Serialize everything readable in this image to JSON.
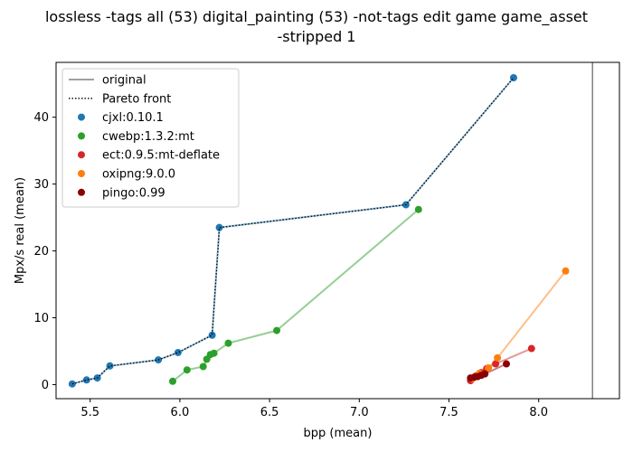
{
  "chart_data": {
    "type": "scatter",
    "title_lines": [
      "lossless -tags all (53) digital_painting (53) -not-tags edit game game_asset",
      "-stripped 1"
    ],
    "xlabel": "bpp (mean)",
    "ylabel": "Mpx/s real (mean)",
    "xlim": [
      5.31,
      8.45
    ],
    "ylim": [
      -2.1,
      48.2
    ],
    "xticks": [
      "5.5",
      "6.0",
      "6.5",
      "7.0",
      "7.5",
      "8.0"
    ],
    "yticks": [
      "0",
      "10",
      "20",
      "30",
      "40"
    ],
    "grid": false,
    "legend_position": "top-left",
    "original_line_x": 8.3,
    "legend": [
      {
        "label": "original",
        "kind": "line-solid",
        "color": "#808080"
      },
      {
        "label": "Pareto front",
        "kind": "line-dotted",
        "color": "#000000"
      },
      {
        "label": "cjxl:0.10.1",
        "kind": "dot",
        "color": "#1f77b4"
      },
      {
        "label": "cwebp:1.3.2:mt",
        "kind": "dot",
        "color": "#2ca02c"
      },
      {
        "label": "ect:0.9.5:mt-deflate",
        "kind": "dot",
        "color": "#d62728"
      },
      {
        "label": "oxipng:9.0.0",
        "kind": "dot",
        "color": "#ff7f0e"
      },
      {
        "label": "pingo:0.99",
        "kind": "dot",
        "color": "#8b0000"
      }
    ],
    "series": [
      {
        "name": "cwebp:1.3.2:mt",
        "color": "#2ca02c",
        "x": [
          5.96,
          6.04,
          6.13,
          6.15,
          6.17,
          6.19,
          6.27,
          6.54,
          7.33
        ],
        "y": [
          0.5,
          2.2,
          2.7,
          3.8,
          4.5,
          4.7,
          6.2,
          8.1,
          26.2
        ]
      },
      {
        "name": "ect:0.9.5:mt-deflate",
        "color": "#d62728",
        "x": [
          7.62,
          7.65,
          7.68,
          7.71,
          7.76,
          7.96
        ],
        "y": [
          0.6,
          1.3,
          1.8,
          2.4,
          3.1,
          5.4
        ]
      },
      {
        "name": "oxipng:9.0.0",
        "color": "#ff7f0e",
        "x": [
          7.63,
          7.67,
          7.72,
          7.77,
          8.15
        ],
        "y": [
          0.9,
          1.7,
          2.5,
          4.0,
          17.0
        ]
      },
      {
        "name": "pingo:0.99",
        "color": "#8b0000",
        "x": [
          7.62,
          7.64,
          7.66,
          7.68,
          7.7,
          7.82
        ],
        "y": [
          1.0,
          1.1,
          1.2,
          1.4,
          1.6,
          3.1
        ]
      },
      {
        "name": "cjxl:0.10.1",
        "color": "#1f77b4",
        "x": [
          5.4,
          5.48,
          5.54,
          5.61,
          5.88,
          5.99,
          6.18,
          6.22,
          7.26,
          7.86
        ],
        "y": [
          0.1,
          0.7,
          1.0,
          2.8,
          3.7,
          4.8,
          7.4,
          23.5,
          26.9,
          45.9
        ]
      }
    ],
    "pareto_front": {
      "x": [
        5.4,
        5.48,
        5.54,
        5.61,
        5.88,
        5.99,
        6.18,
        6.22,
        7.26,
        7.86
      ],
      "y": [
        0.1,
        0.7,
        1.0,
        2.8,
        3.7,
        4.8,
        7.4,
        23.5,
        26.9,
        45.9
      ]
    }
  }
}
